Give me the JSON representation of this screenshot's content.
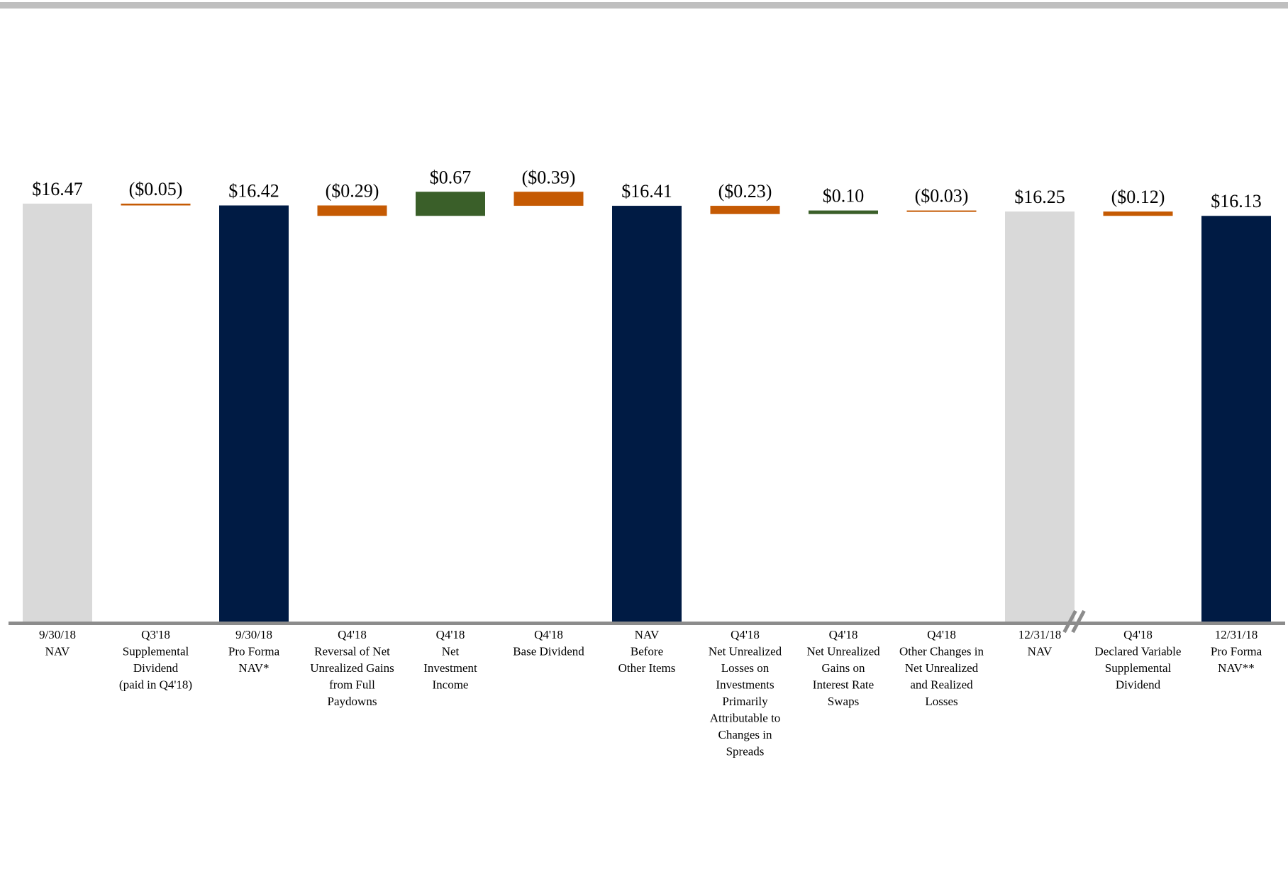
{
  "chart_data": {
    "type": "bar",
    "subtype": "waterfall",
    "title": "",
    "xlabel": "",
    "ylabel": "",
    "grid": false,
    "legend": "none",
    "break_marker_before": "Q4'18 Declared Variable Supplemental Dividend",
    "colors": {
      "nav": "#d9d9d9",
      "pro_forma": "#001b44",
      "negative": "#c55a03",
      "positive": "#3a5f29",
      "axis": "#8c8c8c",
      "top_rule": "#bfbfbf"
    },
    "bars": [
      {
        "category": [
          "9/30/18",
          "NAV"
        ],
        "kind": "total",
        "style": "nav",
        "start": 0,
        "end": 16.47,
        "label": "$16.47"
      },
      {
        "category": [
          "Q3'18",
          "Supplemental",
          "Dividend",
          "(paid in Q4'18)"
        ],
        "kind": "delta",
        "style": "negative",
        "start": 16.47,
        "end": 16.42,
        "label": "($0.05)"
      },
      {
        "category": [
          "9/30/18",
          "Pro Forma",
          "NAV*"
        ],
        "kind": "total",
        "style": "pro_forma",
        "start": 0,
        "end": 16.42,
        "label": "$16.42"
      },
      {
        "category": [
          "Q4'18",
          "Reversal of Net",
          "Unrealized Gains",
          "from Full",
          "Paydowns"
        ],
        "kind": "delta",
        "style": "negative",
        "start": 16.42,
        "end": 16.13,
        "label": "($0.29)"
      },
      {
        "category": [
          "Q4'18",
          "Net",
          "Investment",
          "Income"
        ],
        "kind": "delta",
        "style": "positive",
        "start": 16.13,
        "end": 16.8,
        "label": "$0.67"
      },
      {
        "category": [
          "Q4'18",
          "Base Dividend"
        ],
        "kind": "delta",
        "style": "negative",
        "start": 16.8,
        "end": 16.41,
        "label": "($0.39)"
      },
      {
        "category": [
          "NAV",
          "Before",
          "Other Items"
        ],
        "kind": "total",
        "style": "pro_forma",
        "start": 0,
        "end": 16.41,
        "label": "$16.41"
      },
      {
        "category": [
          "Q4'18",
          "Net Unrealized",
          "Losses on",
          "Investments",
          "Primarily",
          "Attributable to",
          "Changes in",
          "Spreads"
        ],
        "kind": "delta",
        "style": "negative",
        "start": 16.41,
        "end": 16.18,
        "label": "($0.23)"
      },
      {
        "category": [
          "Q4'18",
          "Net Unrealized",
          "Gains on",
          "Interest Rate",
          "Swaps"
        ],
        "kind": "delta",
        "style": "positive",
        "start": 16.18,
        "end": 16.28,
        "label": "$0.10"
      },
      {
        "category": [
          "Q4'18",
          "Other Changes in",
          "Net Unrealized",
          "and Realized",
          "Losses"
        ],
        "kind": "delta",
        "style": "negative",
        "start": 16.28,
        "end": 16.25,
        "label": "($0.03)"
      },
      {
        "category": [
          "12/31/18",
          "NAV"
        ],
        "kind": "total",
        "style": "nav",
        "start": 0,
        "end": 16.25,
        "label": "$16.25"
      },
      {
        "category": [
          "Q4'18",
          "Declared Variable",
          "Supplemental",
          "Dividend"
        ],
        "kind": "delta",
        "style": "negative",
        "start": 16.25,
        "end": 16.13,
        "label": "($0.12)"
      },
      {
        "category": [
          "12/31/18",
          "Pro Forma",
          "NAV**"
        ],
        "kind": "total",
        "style": "pro_forma",
        "start": 0,
        "end": 16.13,
        "label": "$16.13"
      }
    ]
  }
}
